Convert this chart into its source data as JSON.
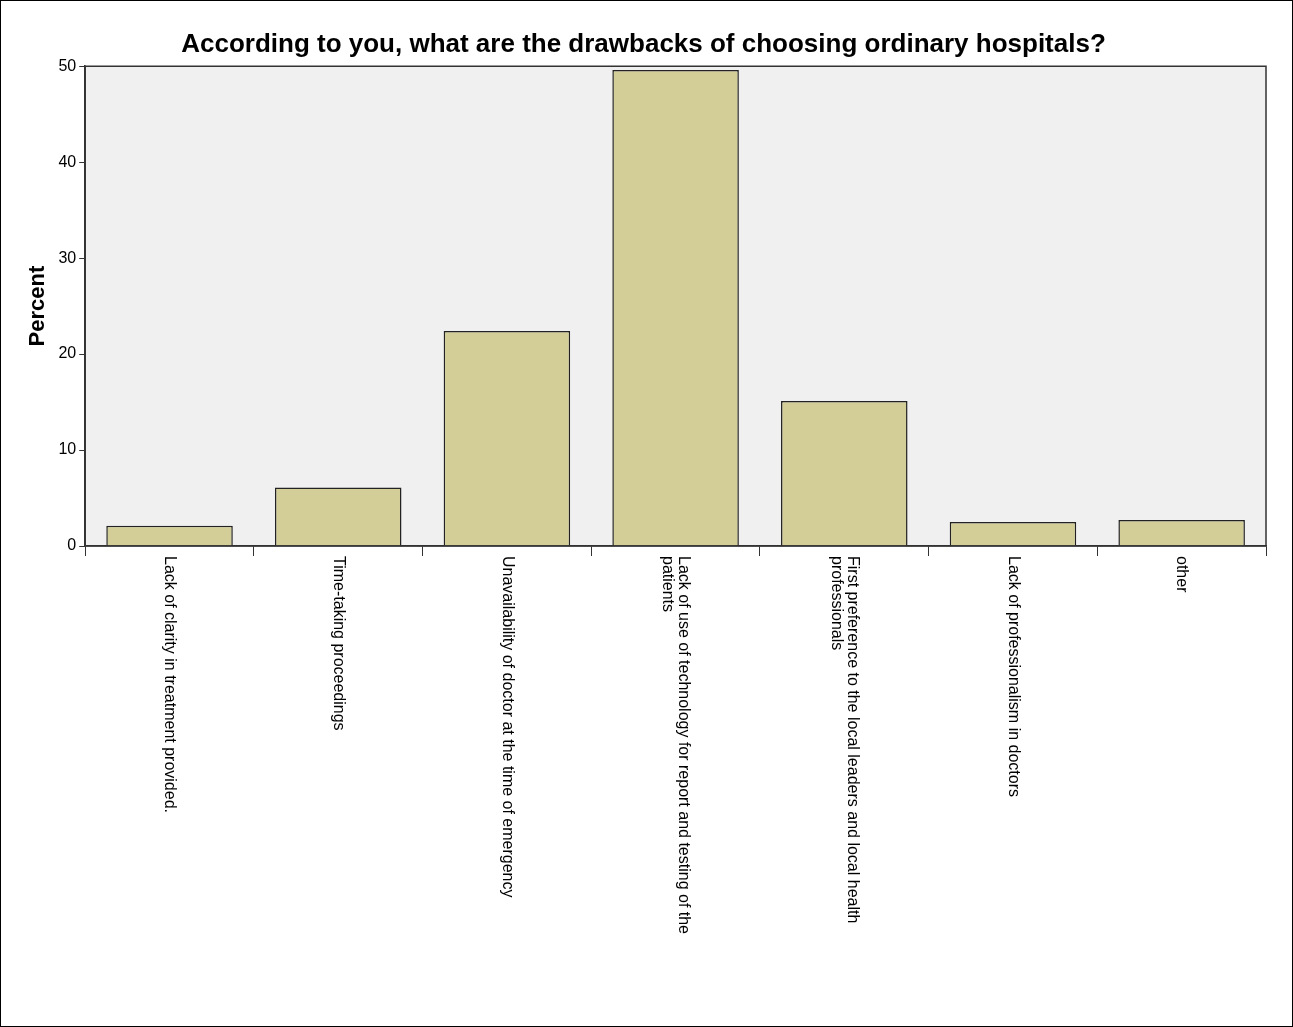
{
  "chart_data": {
    "type": "bar",
    "title": "According to you, what are the drawbacks of choosing ordinary hospitals?",
    "ylabel": "Percent",
    "categories": [
      "Lack of clarity in treatment provided.",
      "Time-taking proceedings",
      "Unavailability of doctor at the time of emergency",
      "Lack of use of technology for report and testing of the patients",
      "First preference to the local leaders and local health professionals",
      "Lack of professionalism in doctors",
      "other"
    ],
    "values": [
      2.1,
      6.1,
      22.4,
      49.6,
      15.1,
      2.5,
      2.7
    ],
    "color": "#d3ce97",
    "ylim": [
      0,
      50
    ],
    "yticks": [
      0,
      10,
      20,
      30,
      40,
      50
    ],
    "grid": false,
    "legend": false
  }
}
